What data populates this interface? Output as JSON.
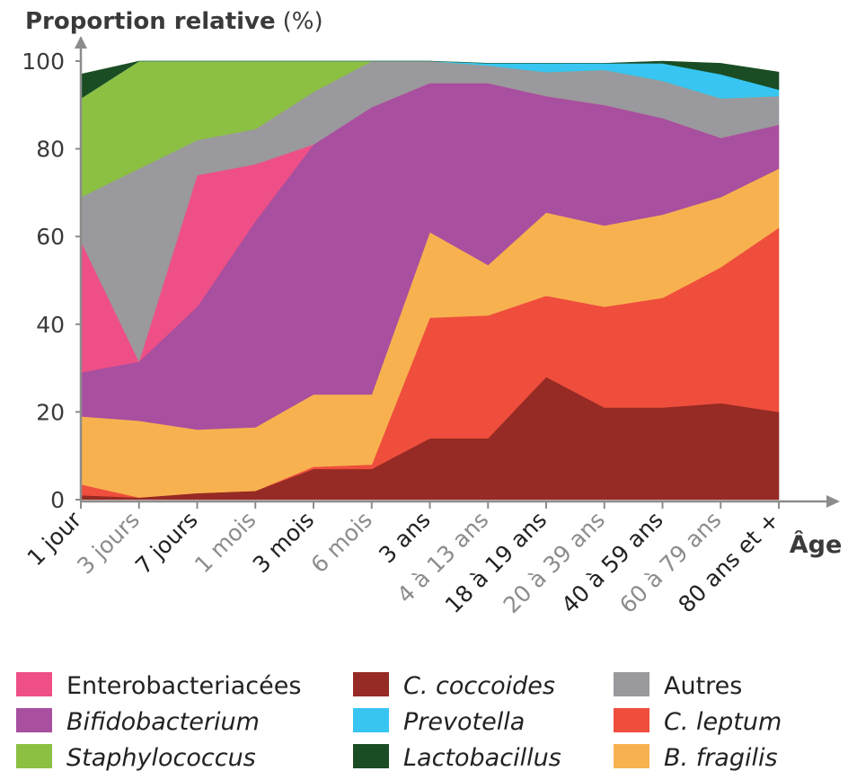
{
  "chart_data": {
    "type": "area",
    "stacked": true,
    "title": "Proportion relative",
    "title_unit": "(%)",
    "xlabel": "Âge",
    "ylabel": "",
    "ylim": [
      0,
      100
    ],
    "yticks": [
      0,
      20,
      40,
      60,
      80,
      100
    ],
    "categories": [
      "1 jour",
      "3 jours",
      "7 jours",
      "1 mois",
      "3 mois",
      "6 mois",
      "3 ans",
      "4 à 13 ans",
      "18 à 19 ans",
      "20 à 39 ans",
      "40 à 59 ans",
      "60 à 79 ans",
      "80 ans et +"
    ],
    "category_tones": [
      "dark",
      "grey",
      "dark",
      "grey",
      "dark",
      "grey",
      "dark",
      "grey",
      "dark",
      "grey",
      "dark",
      "grey",
      "dark"
    ],
    "series": [
      {
        "name": "C. coccoides",
        "italic": true,
        "color": "#962a24",
        "values": [
          1,
          0.5,
          1.5,
          2,
          7,
          7,
          14,
          14,
          28,
          21,
          21,
          22,
          20
        ]
      },
      {
        "name": "C. leptum",
        "italic": true,
        "color": "#ef4e3d",
        "values": [
          2.5,
          0,
          0,
          0,
          0.5,
          1,
          27.5,
          28,
          18.5,
          23,
          25,
          31,
          42
        ]
      },
      {
        "name": "B. fragilis",
        "italic": true,
        "color": "#f7b24f",
        "values": [
          15.5,
          17.5,
          14.5,
          14.5,
          16.5,
          16,
          19.5,
          11.5,
          19,
          18.5,
          19,
          16,
          13.5
        ]
      },
      {
        "name": "Bifidobacterium",
        "italic": true,
        "color": "#a84f9f",
        "values": [
          10,
          13.5,
          28,
          47,
          57,
          65.5,
          34,
          41.5,
          26.5,
          27.5,
          22,
          13.5,
          10
        ]
      },
      {
        "name": "Enterobacteriacées",
        "italic": false,
        "color": "#ee4f87",
        "values": [
          30,
          0,
          30,
          13,
          0,
          0,
          0,
          0,
          0,
          0,
          0,
          0,
          0
        ]
      },
      {
        "name": "Autres",
        "italic": false,
        "color": "#9a999d",
        "values": [
          10,
          44,
          8,
          8,
          12,
          10.5,
          5,
          4,
          5.5,
          8,
          8.5,
          9,
          6.5
        ]
      },
      {
        "name": "Staphylococcus",
        "italic": true,
        "color": "#8cc043",
        "values": [
          22.5,
          24.5,
          18,
          15.5,
          7,
          0,
          0,
          0,
          0,
          0,
          0,
          0,
          0
        ]
      },
      {
        "name": "Prevotella",
        "italic": true,
        "color": "#38c5f1",
        "values": [
          0,
          0,
          0,
          0,
          0,
          0,
          0,
          0.5,
          2,
          1.5,
          4,
          5.5,
          1.5
        ]
      },
      {
        "name": "Lactobacillus",
        "italic": true,
        "color": "#1a4d24",
        "values": [
          5.5,
          0,
          0,
          0,
          0,
          0,
          0,
          0,
          0,
          0,
          0.5,
          2.5,
          4
        ]
      }
    ],
    "legend": {
      "placement": "bottom",
      "columns": [
        [
          "Enterobacteriacées",
          "Bifidobacterium",
          "Staphylococcus"
        ],
        [
          "C. coccoides",
          "Prevotella",
          "Lactobacillus"
        ],
        [
          "Autres",
          "C. leptum",
          "B. fragilis"
        ]
      ]
    }
  }
}
